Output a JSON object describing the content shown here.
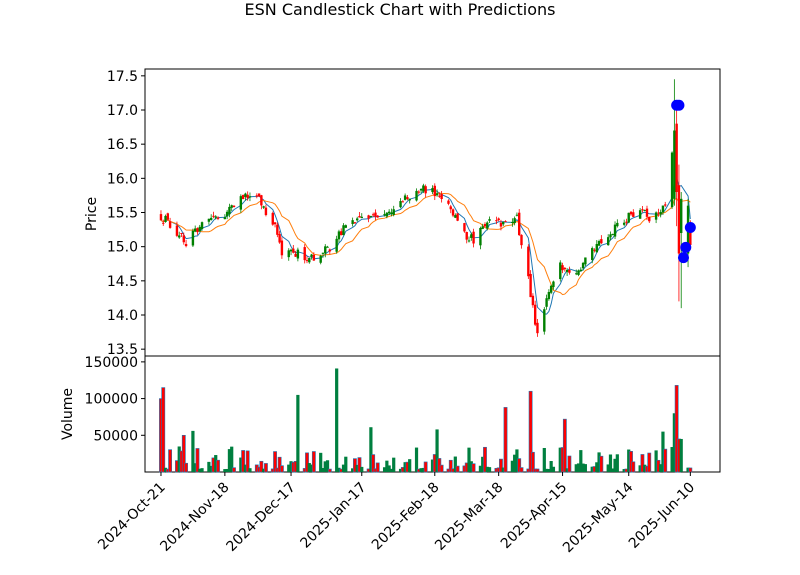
{
  "chart_data": {
    "type": "candlestick",
    "title": "ESN Candlestick Chart with Predictions",
    "x_tick_labels": [
      "2024-Oct-21",
      "2024-Nov-18",
      "2024-Dec-17",
      "2025-Jan-17",
      "2025-Feb-18",
      "2025-Mar-18",
      "2025-Apr-15",
      "2025-May-14",
      "2025-Jun-10"
    ],
    "x_tick_dates": [
      "2024-10-21",
      "2024-11-18",
      "2024-12-17",
      "2025-01-17",
      "2025-02-18",
      "2025-03-18",
      "2025-04-15",
      "2025-05-14",
      "2025-06-10"
    ],
    "x_range": [
      "2024-10-14",
      "2025-06-23"
    ],
    "price_panel": {
      "ylabel": "Price",
      "ylim": [
        13.4,
        17.6
      ],
      "yticks": [
        13.5,
        14.0,
        14.5,
        15.0,
        15.5,
        16.0,
        16.5,
        17.0,
        17.5
      ],
      "ytick_labels": [
        "13.5",
        "14.0",
        "14.5",
        "15.0",
        "15.5",
        "16.0",
        "16.5",
        "17.0",
        "17.5"
      ],
      "close_keyframes": [
        [
          "2024-10-21",
          15.45
        ],
        [
          "2024-10-24",
          15.35
        ],
        [
          "2024-10-28",
          15.2
        ],
        [
          "2024-11-01",
          15.05
        ],
        [
          "2024-11-05",
          15.25
        ],
        [
          "2024-11-11",
          15.45
        ],
        [
          "2024-11-15",
          15.4
        ],
        [
          "2024-11-20",
          15.55
        ],
        [
          "2024-11-27",
          15.75
        ],
        [
          "2024-12-03",
          15.7
        ],
        [
          "2024-12-09",
          15.35
        ],
        [
          "2024-12-13",
          14.95
        ],
        [
          "2024-12-19",
          14.9
        ],
        [
          "2024-12-27",
          14.85
        ],
        [
          "2025-01-03",
          15.0
        ],
        [
          "2025-01-10",
          15.3
        ],
        [
          "2025-01-17",
          15.4
        ],
        [
          "2025-01-27",
          15.45
        ],
        [
          "2025-02-03",
          15.6
        ],
        [
          "2025-02-10",
          15.85
        ],
        [
          "2025-02-17",
          15.8
        ],
        [
          "2025-02-24",
          15.65
        ],
        [
          "2025-03-03",
          15.2
        ],
        [
          "2025-03-07",
          15.1
        ],
        [
          "2025-03-14",
          15.45
        ],
        [
          "2025-03-21",
          15.3
        ],
        [
          "2025-03-26",
          15.4
        ],
        [
          "2025-03-31",
          14.5
        ],
        [
          "2025-04-04",
          13.7
        ],
        [
          "2025-04-09",
          14.3
        ],
        [
          "2025-04-14",
          14.7
        ],
        [
          "2025-04-21",
          14.55
        ],
        [
          "2025-04-25",
          14.9
        ],
        [
          "2025-05-02",
          15.1
        ],
        [
          "2025-05-09",
          15.3
        ],
        [
          "2025-05-16",
          15.5
        ],
        [
          "2025-05-23",
          15.45
        ],
        [
          "2025-05-30",
          15.6
        ],
        [
          "2025-06-03",
          16.7
        ],
        [
          "2025-06-05",
          16.3
        ],
        [
          "2025-06-10",
          15.0
        ]
      ],
      "ma_short_color": "#1f77b4",
      "ma_long_color": "#ff7f0e",
      "up_color": "#008000",
      "down_color": "#ff0000",
      "prediction_color": "#0000ff",
      "predictions": [
        {
          "date": "2025-06-04",
          "value": 17.07
        },
        {
          "date": "2025-06-05",
          "value": 17.07
        },
        {
          "date": "2025-06-07",
          "value": 14.84
        },
        {
          "date": "2025-06-08",
          "value": 14.99
        },
        {
          "date": "2025-06-10",
          "value": 15.28
        }
      ]
    },
    "volume_panel": {
      "ylabel": "Volume",
      "ylim": [
        0,
        158000
      ],
      "yticks": [
        50000,
        100000,
        150000
      ],
      "ytick_labels": [
        "50000",
        "100000",
        "150000"
      ],
      "bar_color_a": "#ff0000",
      "bar_color_b": "#1f77b4",
      "bar_color_up": "#007f3f",
      "peaks": [
        {
          "date": "2024-10-21",
          "value": 100000
        },
        {
          "date": "2024-10-22",
          "value": 115000
        },
        {
          "date": "2024-10-31",
          "value": 50000
        },
        {
          "date": "2024-11-04",
          "value": 56000
        },
        {
          "date": "2024-12-20",
          "value": 105000
        },
        {
          "date": "2025-01-06",
          "value": 141000
        },
        {
          "date": "2025-01-21",
          "value": 61000
        },
        {
          "date": "2025-02-19",
          "value": 58000
        },
        {
          "date": "2025-03-21",
          "value": 88000
        },
        {
          "date": "2025-04-01",
          "value": 110000
        },
        {
          "date": "2025-04-16",
          "value": 72000
        },
        {
          "date": "2025-05-29",
          "value": 55000
        },
        {
          "date": "2025-06-03",
          "value": 80000
        },
        {
          "date": "2025-06-04",
          "value": 118000
        },
        {
          "date": "2025-06-05",
          "value": 45000
        },
        {
          "date": "2025-06-06",
          "value": 45000
        }
      ]
    }
  }
}
